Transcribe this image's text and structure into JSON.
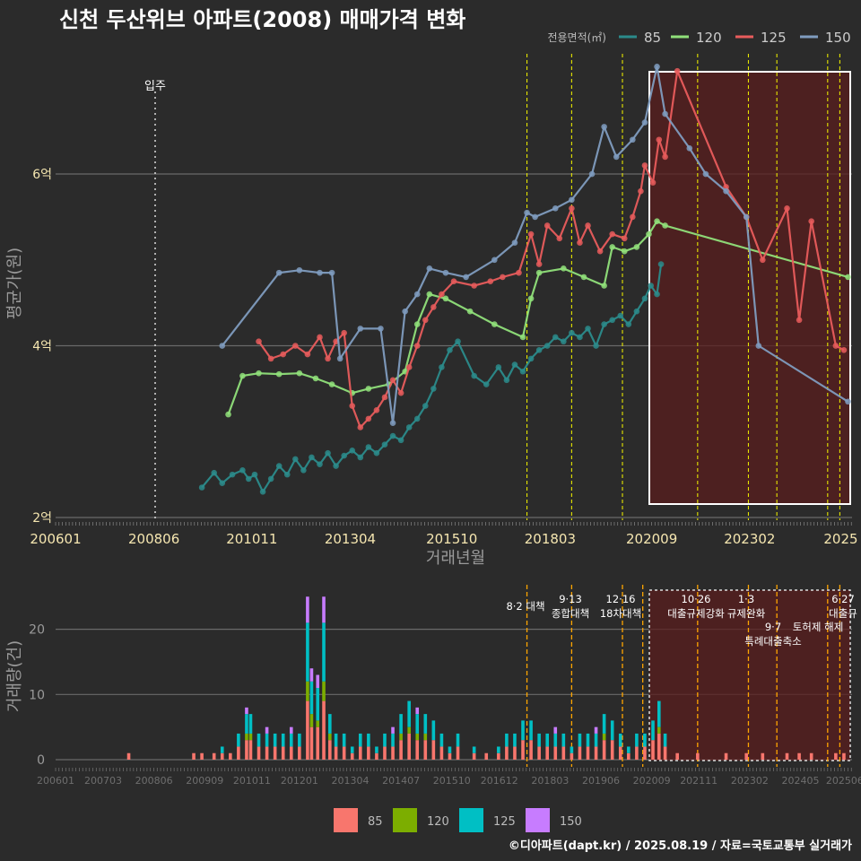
{
  "title": "신천 두산위브 아파트(2008) 매매가격 변화",
  "legend_top": {
    "label": "전용면적(㎡)",
    "items": [
      {
        "name": "85",
        "color": "#2b8b8b"
      },
      {
        "name": "120",
        "color": "#90e07a"
      },
      {
        "name": "125",
        "color": "#e85c5c"
      },
      {
        "name": "150",
        "color": "#7f9cbf"
      }
    ]
  },
  "legend_bottom": {
    "items": [
      {
        "name": "85",
        "color": "#f8766d"
      },
      {
        "name": "120",
        "color": "#7cae00"
      },
      {
        "name": "125",
        "color": "#00bfc4"
      },
      {
        "name": "150",
        "color": "#c77cff"
      }
    ]
  },
  "footer": "©디아파트(dapt.kr) / 2025.08.19 / 자료=국토교통부 실거래가",
  "chart_data": [
    {
      "type": "line",
      "title": "신천 두산위브 아파트(2008) 매매가격 변화",
      "xlabel": "거래년월",
      "ylabel": "평균가(원)",
      "x_ticks": [
        "200601",
        "200806",
        "201011",
        "201304",
        "201510",
        "201803",
        "202009",
        "202302",
        "2025"
      ],
      "y_ticks": [
        {
          "v": 2,
          "label": "2억"
        },
        {
          "v": 4,
          "label": "4억"
        },
        {
          "v": 6,
          "label": "6억"
        }
      ],
      "ylim": [
        2,
        7.4
      ],
      "xlim": [
        2006.0,
        2025.6
      ],
      "annotation_move_in": {
        "label": "입주",
        "x": 2008.45
      },
      "policy_lines": [
        2017.6,
        2018.7,
        2019.95,
        2021.8,
        2023.05,
        2023.75,
        2025.0,
        2025.3
      ],
      "highlight": {
        "from": 2020.7,
        "to": 2025.55,
        "ymin": 2.15,
        "ymax": 7.35
      },
      "series": [
        {
          "name": "85",
          "color": "#2b8b8b",
          "points": [
            [
              2009.6,
              2.35
            ],
            [
              2009.9,
              2.52
            ],
            [
              2010.1,
              2.4
            ],
            [
              2010.35,
              2.5
            ],
            [
              2010.6,
              2.55
            ],
            [
              2010.75,
              2.45
            ],
            [
              2010.9,
              2.5
            ],
            [
              2011.1,
              2.3
            ],
            [
              2011.3,
              2.45
            ],
            [
              2011.5,
              2.6
            ],
            [
              2011.7,
              2.5
            ],
            [
              2011.9,
              2.68
            ],
            [
              2012.1,
              2.55
            ],
            [
              2012.3,
              2.7
            ],
            [
              2012.5,
              2.62
            ],
            [
              2012.7,
              2.75
            ],
            [
              2012.9,
              2.6
            ],
            [
              2013.1,
              2.72
            ],
            [
              2013.3,
              2.78
            ],
            [
              2013.5,
              2.7
            ],
            [
              2013.7,
              2.82
            ],
            [
              2013.9,
              2.75
            ],
            [
              2014.1,
              2.85
            ],
            [
              2014.3,
              2.95
            ],
            [
              2014.5,
              2.9
            ],
            [
              2014.7,
              3.05
            ],
            [
              2014.9,
              3.15
            ],
            [
              2015.1,
              3.3
            ],
            [
              2015.3,
              3.5
            ],
            [
              2015.5,
              3.75
            ],
            [
              2015.7,
              3.95
            ],
            [
              2015.9,
              4.05
            ],
            [
              2016.3,
              3.65
            ],
            [
              2016.6,
              3.55
            ],
            [
              2016.9,
              3.75
            ],
            [
              2017.1,
              3.6
            ],
            [
              2017.3,
              3.78
            ],
            [
              2017.5,
              3.7
            ],
            [
              2017.7,
              3.85
            ],
            [
              2017.9,
              3.95
            ],
            [
              2018.1,
              4.0
            ],
            [
              2018.3,
              4.1
            ],
            [
              2018.5,
              4.05
            ],
            [
              2018.7,
              4.15
            ],
            [
              2018.9,
              4.1
            ],
            [
              2019.1,
              4.2
            ],
            [
              2019.3,
              4.0
            ],
            [
              2019.5,
              4.25
            ],
            [
              2019.7,
              4.3
            ],
            [
              2019.9,
              4.35
            ],
            [
              2020.1,
              4.25
            ],
            [
              2020.3,
              4.4
            ],
            [
              2020.5,
              4.55
            ],
            [
              2020.65,
              4.7
            ],
            [
              2020.8,
              4.6
            ],
            [
              2020.9,
              4.95
            ]
          ]
        },
        {
          "name": "120",
          "color": "#90e07a",
          "points": [
            [
              2010.25,
              3.2
            ],
            [
              2010.6,
              3.65
            ],
            [
              2011.0,
              3.68
            ],
            [
              2011.5,
              3.67
            ],
            [
              2012.0,
              3.68
            ],
            [
              2012.4,
              3.62
            ],
            [
              2012.8,
              3.55
            ],
            [
              2013.3,
              3.45
            ],
            [
              2013.7,
              3.5
            ],
            [
              2014.2,
              3.55
            ],
            [
              2014.6,
              3.7
            ],
            [
              2014.9,
              4.25
            ],
            [
              2015.2,
              4.6
            ],
            [
              2015.6,
              4.55
            ],
            [
              2016.2,
              4.4
            ],
            [
              2016.8,
              4.25
            ],
            [
              2017.5,
              4.1
            ],
            [
              2017.7,
              4.55
            ],
            [
              2017.9,
              4.85
            ],
            [
              2018.5,
              4.9
            ],
            [
              2019.0,
              4.8
            ],
            [
              2019.5,
              4.7
            ],
            [
              2019.7,
              5.15
            ],
            [
              2020.0,
              5.1
            ],
            [
              2020.3,
              5.15
            ],
            [
              2020.6,
              5.3
            ],
            [
              2020.8,
              5.45
            ],
            [
              2021.0,
              5.4
            ],
            [
              2025.5,
              4.8
            ]
          ]
        },
        {
          "name": "125",
          "color": "#e85c5c",
          "points": [
            [
              2011.0,
              4.05
            ],
            [
              2011.3,
              3.85
            ],
            [
              2011.6,
              3.9
            ],
            [
              2011.9,
              4.0
            ],
            [
              2012.2,
              3.9
            ],
            [
              2012.5,
              4.1
            ],
            [
              2012.7,
              3.85
            ],
            [
              2012.9,
              4.05
            ],
            [
              2013.1,
              4.15
            ],
            [
              2013.3,
              3.3
            ],
            [
              2013.5,
              3.05
            ],
            [
              2013.7,
              3.15
            ],
            [
              2013.9,
              3.25
            ],
            [
              2014.1,
              3.4
            ],
            [
              2014.3,
              3.6
            ],
            [
              2014.5,
              3.45
            ],
            [
              2014.7,
              3.75
            ],
            [
              2014.9,
              4.0
            ],
            [
              2015.1,
              4.3
            ],
            [
              2015.3,
              4.45
            ],
            [
              2015.5,
              4.6
            ],
            [
              2015.8,
              4.75
            ],
            [
              2016.3,
              4.7
            ],
            [
              2016.7,
              4.75
            ],
            [
              2017.0,
              4.8
            ],
            [
              2017.4,
              4.85
            ],
            [
              2017.7,
              5.3
            ],
            [
              2017.9,
              4.95
            ],
            [
              2018.1,
              5.4
            ],
            [
              2018.4,
              5.25
            ],
            [
              2018.7,
              5.6
            ],
            [
              2018.9,
              5.2
            ],
            [
              2019.1,
              5.4
            ],
            [
              2019.4,
              5.1
            ],
            [
              2019.7,
              5.3
            ],
            [
              2020.0,
              5.25
            ],
            [
              2020.2,
              5.5
            ],
            [
              2020.4,
              5.8
            ],
            [
              2020.5,
              6.1
            ],
            [
              2020.7,
              5.9
            ],
            [
              2020.85,
              6.4
            ],
            [
              2021.0,
              6.2
            ],
            [
              2021.3,
              7.2
            ],
            [
              2022.5,
              5.85
            ],
            [
              2023.0,
              5.5
            ],
            [
              2023.4,
              5.0
            ],
            [
              2024.0,
              5.6
            ],
            [
              2024.3,
              4.3
            ],
            [
              2024.6,
              5.45
            ],
            [
              2025.2,
              4.0
            ],
            [
              2025.4,
              3.95
            ]
          ]
        },
        {
          "name": "150",
          "color": "#7f9cbf",
          "points": [
            [
              2010.1,
              4.0
            ],
            [
              2011.5,
              4.85
            ],
            [
              2012.0,
              4.88
            ],
            [
              2012.5,
              4.85
            ],
            [
              2012.8,
              4.85
            ],
            [
              2013.0,
              3.85
            ],
            [
              2013.5,
              4.2
            ],
            [
              2014.0,
              4.2
            ],
            [
              2014.3,
              3.1
            ],
            [
              2014.6,
              4.4
            ],
            [
              2014.9,
              4.6
            ],
            [
              2015.2,
              4.9
            ],
            [
              2015.6,
              4.85
            ],
            [
              2016.1,
              4.8
            ],
            [
              2016.8,
              5.0
            ],
            [
              2017.3,
              5.2
            ],
            [
              2017.6,
              5.55
            ],
            [
              2017.8,
              5.5
            ],
            [
              2018.3,
              5.6
            ],
            [
              2018.7,
              5.7
            ],
            [
              2019.2,
              6.0
            ],
            [
              2019.5,
              6.55
            ],
            [
              2019.8,
              6.2
            ],
            [
              2020.2,
              6.4
            ],
            [
              2020.5,
              6.6
            ],
            [
              2020.8,
              7.25
            ],
            [
              2021.0,
              6.7
            ],
            [
              2021.6,
              6.3
            ],
            [
              2022.0,
              6.0
            ],
            [
              2022.5,
              5.8
            ],
            [
              2023.0,
              5.5
            ],
            [
              2023.3,
              4.0
            ],
            [
              2025.5,
              3.35
            ]
          ]
        }
      ]
    },
    {
      "type": "bar",
      "ylabel": "거래량(건)",
      "y_ticks": [
        0,
        10,
        20
      ],
      "ylim": [
        0,
        26
      ],
      "x_ticks": [
        "200601",
        "200703",
        "200806",
        "200909",
        "201011",
        "201201",
        "201304",
        "201407",
        "201510",
        "201612",
        "201803",
        "201906",
        "202009",
        "202111",
        "202302",
        "202405",
        "202506"
      ],
      "policy_labels": [
        {
          "date": "8·2 대책",
          "x": 2017.6
        },
        {
          "date": "9·13",
          "desc": "종합대책",
          "x": 2018.7
        },
        {
          "date": "12·16",
          "desc": "18차대책",
          "x": 2019.95
        },
        {
          "date": "10·26",
          "desc": "대출규제강화",
          "x": 2021.8
        },
        {
          "date": "1·3",
          "desc": "규제완화",
          "x": 2023.05
        },
        {
          "date": "9·7",
          "desc": "특례대출축소",
          "x": 2023.75
        },
        {
          "date": "토허제 해제",
          "x": 2025.0
        },
        {
          "date": "6·27",
          "desc": "대출규",
          "x": 2025.3
        }
      ],
      "highlight": {
        "from": 2020.7,
        "to": 2025.55
      },
      "counts": [
        [
          2007.8,
          1
        ],
        [
          2009.4,
          1
        ],
        [
          2009.6,
          1
        ],
        [
          2009.9,
          1
        ],
        [
          2010.1,
          2
        ],
        [
          2010.3,
          1
        ],
        [
          2010.5,
          4
        ],
        [
          2010.7,
          8
        ],
        [
          2010.8,
          7
        ],
        [
          2011.0,
          3
        ],
        [
          2011.2,
          5
        ],
        [
          2011.4,
          4
        ],
        [
          2011.6,
          3
        ],
        [
          2011.8,
          5
        ],
        [
          2012.0,
          4
        ],
        [
          2012.2,
          25
        ],
        [
          2012.3,
          14
        ],
        [
          2012.45,
          13
        ],
        [
          2012.6,
          25
        ],
        [
          2012.75,
          7
        ],
        [
          2012.9,
          4
        ],
        [
          2013.1,
          3
        ],
        [
          2013.3,
          2
        ],
        [
          2013.5,
          3
        ],
        [
          2013.7,
          3
        ],
        [
          2013.9,
          2
        ],
        [
          2014.1,
          4
        ],
        [
          2014.3,
          5
        ],
        [
          2014.5,
          7
        ],
        [
          2014.7,
          9
        ],
        [
          2014.9,
          8
        ],
        [
          2015.1,
          7
        ],
        [
          2015.3,
          6
        ],
        [
          2015.5,
          3
        ],
        [
          2015.7,
          2
        ],
        [
          2015.9,
          3
        ],
        [
          2016.3,
          2
        ],
        [
          2016.6,
          1
        ],
        [
          2016.9,
          2
        ],
        [
          2017.1,
          3
        ],
        [
          2017.3,
          4
        ],
        [
          2017.5,
          6
        ],
        [
          2017.7,
          6
        ],
        [
          2017.9,
          3
        ],
        [
          2018.1,
          4
        ],
        [
          2018.3,
          5
        ],
        [
          2018.5,
          3
        ],
        [
          2018.7,
          2
        ],
        [
          2018.9,
          3
        ],
        [
          2019.1,
          4
        ],
        [
          2019.3,
          5
        ],
        [
          2019.5,
          7
        ],
        [
          2019.7,
          6
        ],
        [
          2019.9,
          3
        ],
        [
          2020.1,
          2
        ],
        [
          2020.3,
          3
        ],
        [
          2020.5,
          4
        ],
        [
          2020.7,
          6
        ],
        [
          2020.85,
          9
        ],
        [
          2021.0,
          3
        ],
        [
          2021.3,
          1
        ],
        [
          2021.8,
          1
        ],
        [
          2022.5,
          1
        ],
        [
          2023.0,
          1
        ],
        [
          2023.4,
          1
        ],
        [
          2024.0,
          1
        ],
        [
          2024.3,
          1
        ],
        [
          2024.6,
          1
        ],
        [
          2025.2,
          1
        ],
        [
          2025.4,
          1
        ]
      ]
    }
  ]
}
